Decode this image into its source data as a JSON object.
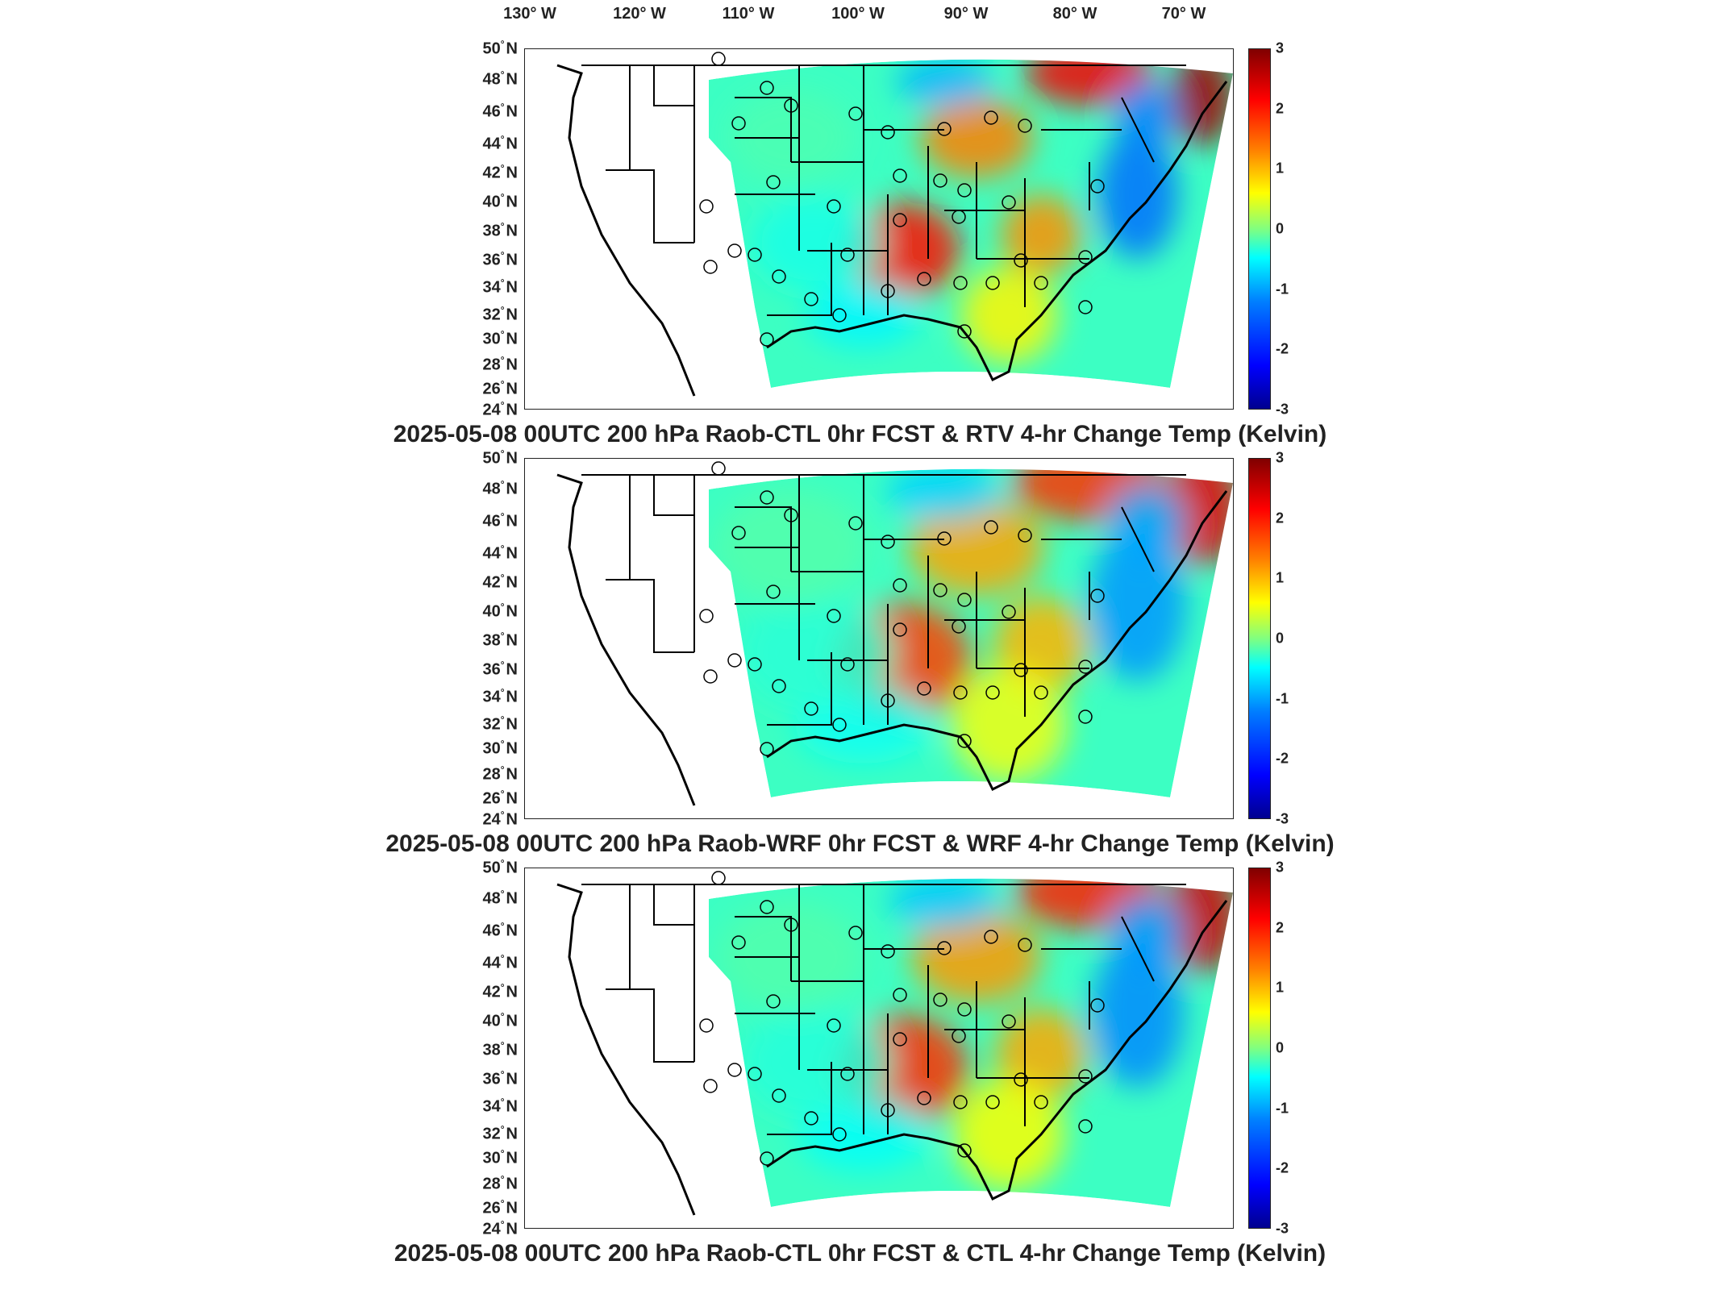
{
  "lon_labels": [
    "130° W",
    "120° W",
    "110° W",
    "100° W",
    "90° W",
    "80° W",
    "70° W"
  ],
  "lat_labels": [
    "50",
    "48",
    "46",
    "44",
    "42",
    "40",
    "38",
    "36",
    "34",
    "32",
    "30",
    "28",
    "26",
    "24"
  ],
  "lat_suffix": "N",
  "colorbar_ticks": [
    "3",
    "2",
    "1",
    "0",
    "-1",
    "-2",
    "-3"
  ],
  "colorbar": {
    "min": -3,
    "max": 3,
    "colormap": "jet"
  },
  "panels": [
    {
      "title": "2025-05-08 00UTC 200 hPa Raob-CTL 0hr FCST & RTV 4-hr Change Temp (Kelvin)"
    },
    {
      "title": "2025-05-08 00UTC 200 hPa Raob-WRF 0hr FCST & WRF 4-hr Change Temp (Kelvin)"
    },
    {
      "title": "2025-05-08 00UTC 200 hPa Raob-CTL 0hr FCST & CTL 4-hr Change Temp (Kelvin)"
    }
  ],
  "colors": {
    "cold": "#0033cc",
    "neutral": "#66ddcc",
    "warm": "#ff3300"
  }
}
